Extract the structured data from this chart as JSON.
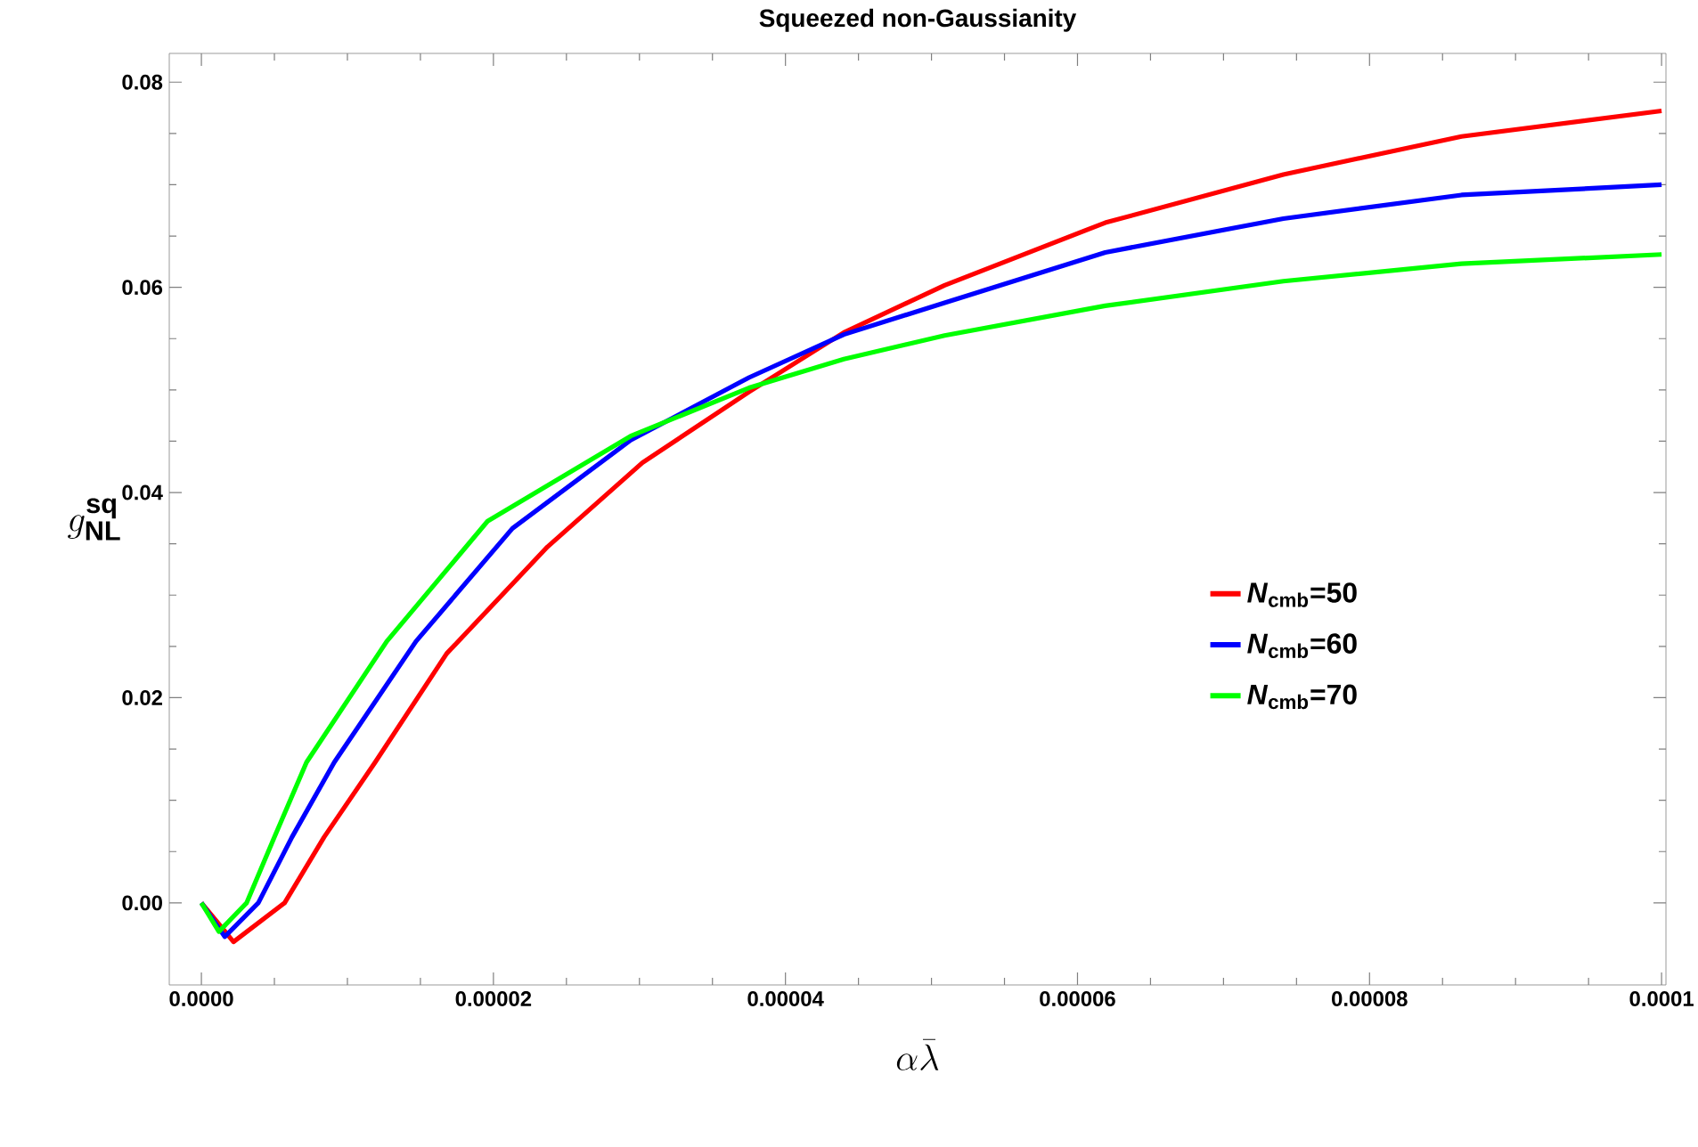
{
  "chart_data": {
    "type": "line",
    "title": "Squeezed non-Gaussianity",
    "xlabel": "\\alpha\\bar{\\lambda}",
    "ylabel": "g^{\\mathbf{sq}}_{\\mathbf{NL}}",
    "xlim": [
      -2.2e-06,
      0.0001003
    ],
    "ylim": [
      -0.008,
      0.0828
    ],
    "xticks": [
      {
        "value": 0,
        "label": "0.0000"
      },
      {
        "value": 2e-05,
        "label": "0.00002"
      },
      {
        "value": 4e-05,
        "label": "0.00004"
      },
      {
        "value": 6e-05,
        "label": "0.00006"
      },
      {
        "value": 8e-05,
        "label": "0.00008"
      },
      {
        "value": 0.0001,
        "label": "0.0001"
      }
    ],
    "yticks": [
      {
        "value": 0,
        "label": "0.00"
      },
      {
        "value": 0.02,
        "label": "0.02"
      },
      {
        "value": 0.04,
        "label": "0.04"
      },
      {
        "value": 0.06,
        "label": "0.06"
      },
      {
        "value": 0.08,
        "label": "0.08"
      }
    ],
    "grid": false,
    "legend": "right",
    "marker": "none",
    "line_style": "solid",
    "series": [
      {
        "name": "*N*$_{cmb}$=50",
        "color": "#ff0000",
        "x": [
          0,
          2.2e-06,
          5.7e-06,
          8.4e-06,
          1.19e-05,
          1.68e-05,
          2.37e-05,
          3.02e-05,
          3.75e-05,
          4.4e-05,
          5.09e-05,
          6.19e-05,
          7.41e-05,
          8.63e-05,
          0.0001
        ],
        "values": [
          0,
          -0.0038,
          0,
          0.0064,
          0.0137,
          0.0243,
          0.0347,
          0.0429,
          0.0498,
          0.0556,
          0.0602,
          0.0663,
          0.071,
          0.0747,
          0.0772
        ]
      },
      {
        "name": "*N*$_{cmb}$=60",
        "color": "#0000ff",
        "x": [
          0,
          1.6e-06,
          3.9e-06,
          6.2e-06,
          9.1e-06,
          1.47e-05,
          2.13e-05,
          2.94e-05,
          3.75e-05,
          4.4e-05,
          5.09e-05,
          6.19e-05,
          7.41e-05,
          8.63e-05,
          0.0001
        ],
        "values": [
          0,
          -0.0033,
          0,
          0.0064,
          0.0137,
          0.0255,
          0.0365,
          0.0451,
          0.0512,
          0.0554,
          0.0585,
          0.0634,
          0.0667,
          0.069,
          0.07
        ]
      },
      {
        "name": "*N*$_{cmb}$=70",
        "color": "#00ff00",
        "x": [
          0,
          1.2e-06,
          3.1e-06,
          5e-06,
          7.2e-06,
          1.27e-05,
          1.96e-05,
          2.94e-05,
          3.75e-05,
          4.4e-05,
          5.09e-05,
          6.19e-05,
          7.41e-05,
          8.63e-05,
          0.0001
        ],
        "values": [
          0,
          -0.0028,
          0,
          0.0064,
          0.0137,
          0.0255,
          0.0372,
          0.0455,
          0.0502,
          0.053,
          0.0553,
          0.0582,
          0.0606,
          0.0623,
          0.0632
        ]
      }
    ]
  }
}
